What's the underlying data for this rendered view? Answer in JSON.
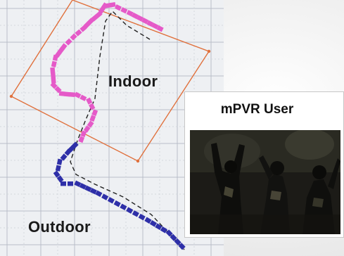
{
  "labels": {
    "indoor": "Indoor",
    "outdoor": "Outdoor"
  },
  "user_panel": {
    "title": "mPVR User"
  },
  "colors": {
    "grid_background": "#eef0f3",
    "grid_lines": "#b9bec8",
    "indoor_boundary": "#e0703c",
    "indoor_track": "#e55ac8",
    "outdoor_track": "#2e2fa8",
    "reference_path": "#222222",
    "video_scene": "#1c1b17"
  },
  "icons": [
    "pedestrian-figures"
  ]
}
